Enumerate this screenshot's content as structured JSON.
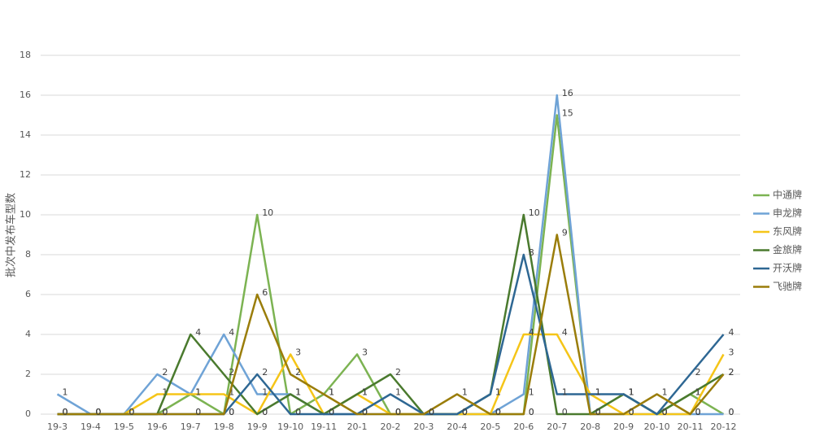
{
  "chart_data": {
    "type": "line",
    "y_label": "批次中发布车型数",
    "categories": [
      "19-3",
      "19-4",
      "19-5",
      "19-6",
      "19-7",
      "19-8",
      "19-9",
      "19-10",
      "19-11",
      "20-1",
      "20-2",
      "20-3",
      "20-4",
      "20-5",
      "20-6",
      "20-7",
      "20-8",
      "20-9",
      "20-10",
      "20-11",
      "20-12"
    ],
    "series": [
      {
        "name": "中通牌",
        "color": "#7cb352",
        "values": [
          0,
          0,
          0,
          0,
          1,
          0,
          10,
          0,
          1,
          3,
          0,
          0,
          0,
          0,
          0,
          15,
          0,
          1,
          0,
          1,
          0
        ]
      },
      {
        "name": "申龙牌",
        "color": "#6fa3d6",
        "values": [
          1,
          0,
          0,
          2,
          1,
          4,
          1,
          1,
          0,
          0,
          0,
          0,
          0,
          0,
          1,
          16,
          0,
          0,
          0,
          0,
          0
        ]
      },
      {
        "name": "东风牌",
        "color": "#f5c518",
        "values": [
          0,
          0,
          0,
          1,
          1,
          1,
          0,
          3,
          0,
          1,
          0,
          0,
          0,
          0,
          4,
          4,
          1,
          0,
          0,
          0,
          3
        ]
      },
      {
        "name": "金旅牌",
        "color": "#4a7a2e",
        "values": [
          0,
          0,
          0,
          0,
          4,
          2,
          0,
          1,
          0,
          1,
          2,
          0,
          0,
          1,
          10,
          0,
          0,
          1,
          0,
          1,
          2
        ]
      },
      {
        "name": "开沃牌",
        "color": "#2e6793",
        "values": [
          0,
          0,
          0,
          0,
          0,
          0,
          2,
          0,
          0,
          0,
          1,
          0,
          0,
          1,
          8,
          1,
          1,
          1,
          0,
          2,
          4
        ]
      },
      {
        "name": "飞驰牌",
        "color": "#9a7d0a",
        "values": [
          0,
          0,
          0,
          0,
          0,
          0,
          6,
          2,
          1,
          0,
          0,
          0,
          1,
          0,
          0,
          9,
          0,
          0,
          1,
          0,
          2
        ]
      }
    ],
    "ylim": [
      0,
      18
    ],
    "yticks": [
      0,
      2,
      4,
      6,
      8,
      10,
      12,
      14,
      16,
      18
    ],
    "grid": true,
    "legend": "right"
  }
}
